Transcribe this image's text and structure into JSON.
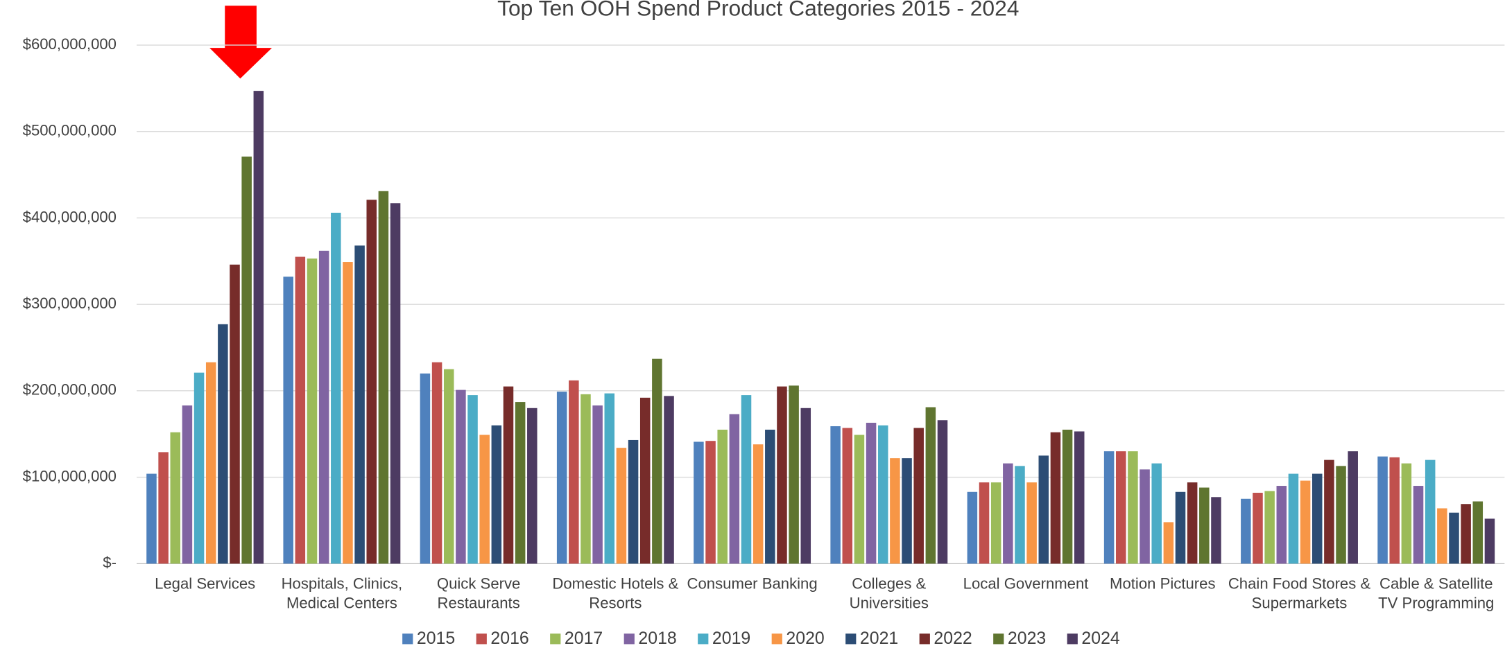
{
  "chart_data": {
    "type": "bar",
    "title": "Top Ten OOH Spend Product Categories 2015 - 2024",
    "categories": [
      "Legal Services",
      "Hospitals, Clinics, Medical Centers",
      "Quick Serve Restaurants",
      "Domestic Hotels & Resorts",
      "Consumer Banking",
      "Colleges & Universities",
      "Local Government",
      "Motion Pictures",
      "Chain Food Stores & Supermarkets",
      "Cable & Satellite TV Programming"
    ],
    "series": [
      {
        "name": "2015",
        "color": "#4f81bd",
        "values": [
          104000000,
          332000000,
          220000000,
          199000000,
          141000000,
          159000000,
          83000000,
          130000000,
          75000000,
          124000000
        ]
      },
      {
        "name": "2016",
        "color": "#c0504d",
        "values": [
          129000000,
          355000000,
          233000000,
          212000000,
          142000000,
          157000000,
          94000000,
          130000000,
          82000000,
          123000000
        ]
      },
      {
        "name": "2017",
        "color": "#9bbb59",
        "values": [
          152000000,
          353000000,
          225000000,
          196000000,
          155000000,
          149000000,
          94000000,
          130000000,
          84000000,
          116000000
        ]
      },
      {
        "name": "2018",
        "color": "#8064a2",
        "values": [
          183000000,
          362000000,
          201000000,
          183000000,
          173000000,
          163000000,
          116000000,
          109000000,
          90000000,
          90000000
        ]
      },
      {
        "name": "2019",
        "color": "#4bacc6",
        "values": [
          221000000,
          406000000,
          195000000,
          197000000,
          195000000,
          160000000,
          113000000,
          116000000,
          104000000,
          120000000
        ]
      },
      {
        "name": "2020",
        "color": "#f79646",
        "values": [
          233000000,
          349000000,
          149000000,
          134000000,
          138000000,
          122000000,
          94000000,
          48000000,
          96000000,
          64000000
        ]
      },
      {
        "name": "2021",
        "color": "#2c4d75",
        "values": [
          277000000,
          368000000,
          160000000,
          143000000,
          155000000,
          122000000,
          125000000,
          83000000,
          104000000,
          59000000
        ]
      },
      {
        "name": "2022",
        "color": "#772c2a",
        "values": [
          346000000,
          421000000,
          205000000,
          192000000,
          205000000,
          157000000,
          152000000,
          94000000,
          120000000,
          69000000
        ]
      },
      {
        "name": "2023",
        "color": "#5f7530",
        "values": [
          471000000,
          431000000,
          187000000,
          237000000,
          206000000,
          181000000,
          155000000,
          88000000,
          113000000,
          72000000
        ]
      },
      {
        "name": "2024",
        "color": "#4d3b62",
        "values": [
          547000000,
          417000000,
          180000000,
          194000000,
          180000000,
          166000000,
          153000000,
          77000000,
          130000000,
          52000000
        ]
      }
    ],
    "ylim": [
      0,
      600000000
    ],
    "yticks": [
      {
        "value": 0,
        "label": "$-"
      },
      {
        "value": 100000000,
        "label": "$100,000,000"
      },
      {
        "value": 200000000,
        "label": "$200,000,000"
      },
      {
        "value": 300000000,
        "label": "$300,000,000"
      },
      {
        "value": 400000000,
        "label": "$400,000,000"
      },
      {
        "value": 500000000,
        "label": "$500,000,000"
      },
      {
        "value": 600000000,
        "label": "$600,000,000"
      }
    ],
    "grid": true,
    "legend": "bottom"
  }
}
